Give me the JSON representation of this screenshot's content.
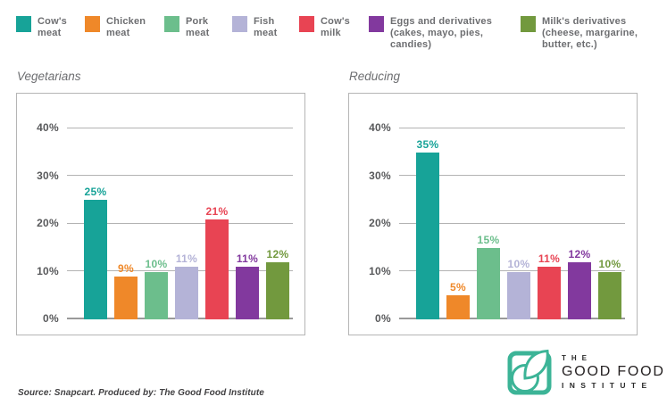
{
  "legend": {
    "items": [
      {
        "label": "Cow's\nmeat",
        "color": "#17a398"
      },
      {
        "label": "Chicken\nmeat",
        "color": "#ef8829"
      },
      {
        "label": "Pork\nmeat",
        "color": "#6cbe8c"
      },
      {
        "label": "Fish\nmeat",
        "color": "#b4b3d7"
      },
      {
        "label": "Cow's\nmilk",
        "color": "#e84453"
      },
      {
        "label": "Eggs and derivatives\n(cakes, mayo, pies,\ncandies)",
        "color": "#82399e"
      },
      {
        "label": "Milk's derivatives\n(cheese, margarine,\nbutter, etc.)",
        "color": "#72993e"
      }
    ]
  },
  "chart_data": [
    {
      "type": "bar",
      "title": "Vegetarians",
      "categories": [
        "Cow's meat",
        "Chicken meat",
        "Pork meat",
        "Fish meat",
        "Cow's milk",
        "Eggs and derivatives (cakes, mayo, pies, candies)",
        "Milk's derivatives (cheese, margarine, butter, etc.)"
      ],
      "values": [
        25,
        9,
        10,
        11,
        21,
        11,
        12
      ],
      "value_labels": [
        "25%",
        "9%",
        "10%",
        "11%",
        "21%",
        "11%",
        "12%"
      ],
      "colors": [
        "#17a398",
        "#ef8829",
        "#6cbe8c",
        "#b4b3d7",
        "#e84453",
        "#82399e",
        "#72993e"
      ],
      "xlabel": "",
      "ylabel": "",
      "ylim": [
        0,
        40
      ],
      "yticks": [
        40,
        30,
        20,
        10,
        0
      ],
      "ytick_labels": [
        "40%",
        "30%",
        "20%",
        "10%",
        "0%"
      ],
      "grid": true,
      "legend_position": "top"
    },
    {
      "type": "bar",
      "title": "Reducing",
      "categories": [
        "Cow's meat",
        "Chicken meat",
        "Pork meat",
        "Fish meat",
        "Cow's milk",
        "Eggs and derivatives (cakes, mayo, pies, candies)",
        "Milk's derivatives (cheese, margarine, butter, etc.)"
      ],
      "values": [
        35,
        5,
        15,
        10,
        11,
        12,
        10
      ],
      "value_labels": [
        "35%",
        "5%",
        "15%",
        "10%",
        "11%",
        "12%",
        "10%"
      ],
      "colors": [
        "#17a398",
        "#ef8829",
        "#6cbe8c",
        "#b4b3d7",
        "#e84453",
        "#82399e",
        "#72993e"
      ],
      "xlabel": "",
      "ylabel": "",
      "ylim": [
        0,
        40
      ],
      "yticks": [
        40,
        30,
        20,
        10,
        0
      ],
      "ytick_labels": [
        "40%",
        "30%",
        "20%",
        "10%",
        "0%"
      ],
      "grid": true,
      "legend_position": "top"
    }
  ],
  "footer": {
    "source": "Source: Snapcart. Produced by: The Good Food Institute",
    "logo": {
      "line1": "THE",
      "line2": "GOOD FOOD",
      "line3": "INSTITUTE",
      "brand_color": "#3cb497"
    }
  }
}
